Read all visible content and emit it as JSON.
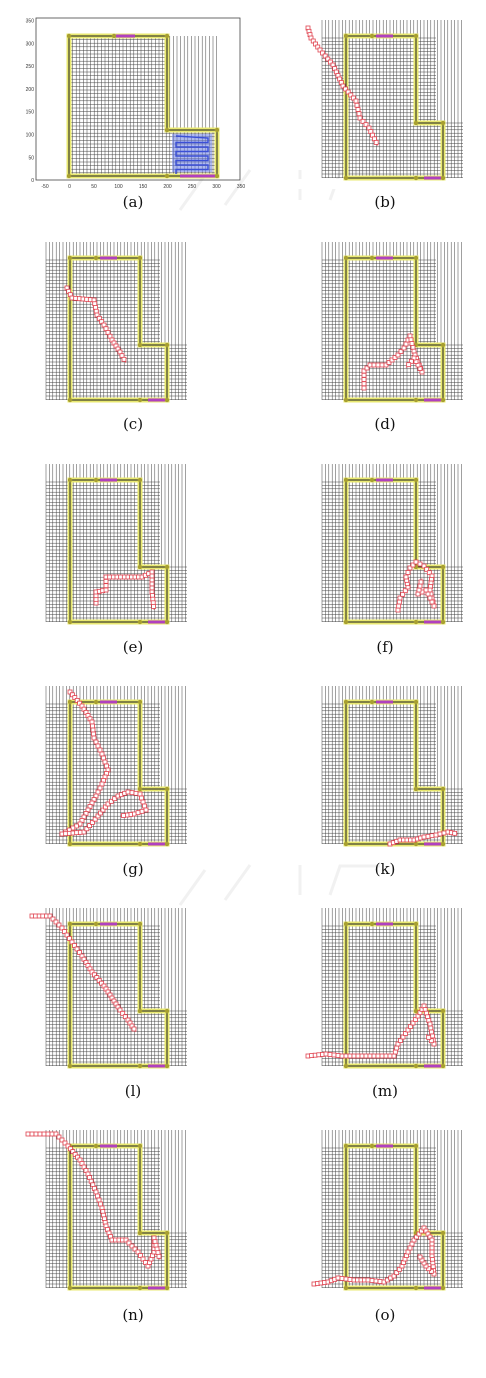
{
  "axis_a": {
    "y_ticks": [
      "350",
      "300",
      "250",
      "200",
      "150",
      "100",
      "50",
      "0"
    ],
    "x_ticks": [
      "-50",
      "0",
      "50",
      "100",
      "150",
      "200",
      "250",
      "300",
      "350"
    ]
  },
  "colors": {
    "wall": "#e8e870",
    "wall_dark": "#1a1a1a",
    "grid": "#222222",
    "door": "#b040c0",
    "path": "#e0424f",
    "coverage": "#3b4fd6",
    "node": "#a8a030"
  },
  "panels": [
    {
      "id": "a",
      "label": "(a)",
      "type": "axes"
    },
    {
      "id": "b",
      "label": "(b)",
      "type": "path",
      "path": [
        [
          10,
          10
        ],
        [
          13,
          20
        ],
        [
          22,
          32
        ],
        [
          35,
          47
        ],
        [
          45,
          68
        ],
        [
          58,
          83
        ],
        [
          62,
          100
        ],
        [
          71,
          110
        ],
        [
          80,
          128
        ]
      ]
    },
    {
      "id": "c",
      "label": "(c)",
      "type": "path",
      "path": [
        [
          45,
          48
        ],
        [
          50,
          58
        ],
        [
          72,
          60
        ],
        [
          75,
          75
        ],
        [
          82,
          85
        ],
        [
          90,
          100
        ],
        [
          98,
          112
        ],
        [
          104,
          123
        ]
      ]
    },
    {
      "id": "d",
      "label": "(d)",
      "type": "path",
      "path": [
        [
          66,
          148
        ],
        [
          66,
          131
        ],
        [
          72,
          125
        ],
        [
          88,
          125
        ],
        [
          100,
          115
        ],
        [
          106,
          108
        ],
        [
          112,
          96
        ],
        [
          117,
          115
        ],
        [
          124,
          132
        ],
        [
          116,
          118
        ],
        [
          108,
          128
        ]
      ]
    },
    {
      "id": "e",
      "label": "(e)",
      "type": "path",
      "path": [
        [
          74,
          141
        ],
        [
          74,
          130
        ],
        [
          84,
          128
        ],
        [
          84,
          115
        ],
        [
          106,
          115
        ],
        [
          120,
          115
        ],
        [
          130,
          110
        ],
        [
          130,
          130
        ],
        [
          132,
          148
        ]
      ]
    },
    {
      "id": "f",
      "label": "(f)",
      "type": "path",
      "path": [
        [
          100,
          148
        ],
        [
          102,
          136
        ],
        [
          110,
          125
        ],
        [
          108,
          115
        ],
        [
          112,
          106
        ],
        [
          118,
          100
        ],
        [
          126,
          104
        ],
        [
          134,
          114
        ],
        [
          132,
          128
        ],
        [
          136,
          144
        ],
        [
          128,
          128
        ],
        [
          120,
          132
        ],
        [
          124,
          116
        ]
      ]
    },
    {
      "id": "g",
      "label": "(g)",
      "type": "path",
      "path": [
        [
          48,
          8
        ],
        [
          60,
          22
        ],
        [
          70,
          38
        ],
        [
          72,
          54
        ],
        [
          80,
          70
        ],
        [
          86,
          86
        ],
        [
          80,
          100
        ],
        [
          74,
          112
        ],
        [
          66,
          126
        ],
        [
          58,
          140
        ],
        [
          40,
          150
        ],
        [
          62,
          148
        ],
        [
          76,
          132
        ],
        [
          86,
          120
        ],
        [
          96,
          112
        ],
        [
          106,
          108
        ],
        [
          118,
          110
        ],
        [
          124,
          126
        ],
        [
          112,
          130
        ],
        [
          98,
          132
        ]
      ]
    },
    {
      "id": "k",
      "label": "(k)",
      "type": "path",
      "path": [
        [
          92,
          160
        ],
        [
          102,
          156
        ],
        [
          116,
          156
        ],
        [
          126,
          153
        ],
        [
          138,
          151
        ],
        [
          150,
          148
        ],
        [
          160,
          150
        ]
      ]
    },
    {
      "id": "l",
      "label": "(l)",
      "type": "path",
      "path": [
        [
          10,
          10
        ],
        [
          28,
          10
        ],
        [
          40,
          22
        ],
        [
          50,
          36
        ],
        [
          60,
          50
        ],
        [
          70,
          66
        ],
        [
          82,
          80
        ],
        [
          90,
          92
        ],
        [
          98,
          104
        ],
        [
          106,
          114
        ],
        [
          114,
          126
        ]
      ]
    },
    {
      "id": "m",
      "label": "(m)",
      "type": "path",
      "path": [
        [
          10,
          150
        ],
        [
          28,
          148
        ],
        [
          44,
          150
        ],
        [
          60,
          150
        ],
        [
          80,
          150
        ],
        [
          96,
          150
        ],
        [
          100,
          138
        ],
        [
          110,
          124
        ],
        [
          120,
          110
        ],
        [
          126,
          100
        ],
        [
          132,
          118
        ],
        [
          136,
          138
        ],
        [
          128,
          128
        ]
      ]
    },
    {
      "id": "n",
      "label": "(n)",
      "type": "path",
      "path": [
        [
          6,
          6
        ],
        [
          34,
          6
        ],
        [
          46,
          18
        ],
        [
          58,
          32
        ],
        [
          66,
          46
        ],
        [
          74,
          64
        ],
        [
          80,
          80
        ],
        [
          84,
          98
        ],
        [
          90,
          112
        ],
        [
          104,
          112
        ],
        [
          116,
          124
        ],
        [
          126,
          138
        ],
        [
          132,
          124
        ],
        [
          132,
          110
        ],
        [
          138,
          132
        ]
      ]
    },
    {
      "id": "o",
      "label": "(o)",
      "type": "path",
      "path": [
        [
          16,
          156
        ],
        [
          30,
          154
        ],
        [
          40,
          150
        ],
        [
          56,
          152
        ],
        [
          70,
          152
        ],
        [
          86,
          154
        ],
        [
          96,
          148
        ],
        [
          104,
          138
        ],
        [
          110,
          124
        ],
        [
          116,
          112
        ],
        [
          126,
          100
        ],
        [
          134,
          112
        ],
        [
          134,
          128
        ],
        [
          136,
          146
        ],
        [
          128,
          138
        ],
        [
          120,
          126
        ]
      ]
    }
  ]
}
